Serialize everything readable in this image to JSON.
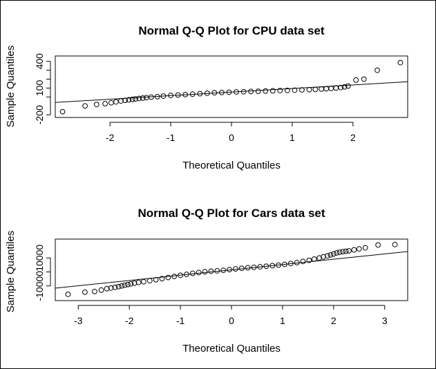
{
  "chart_data": [
    {
      "type": "scatter",
      "title": "Normal Q-Q Plot for CPU data set",
      "xlabel": "Theoretical Quantiles",
      "ylabel": "Sample Quantiles",
      "xlim": [
        -2.9,
        2.9
      ],
      "ylim": [
        -230,
        460
      ],
      "x_ticks": [
        -2,
        -1,
        0,
        1,
        2
      ],
      "y_ticks": [
        -200,
        0,
        100,
        200,
        300,
        400
      ],
      "y_tick_labels": [
        "-200",
        "",
        "100",
        "",
        "",
        "400"
      ],
      "grid": false,
      "reference_line": {
        "intercept": 55,
        "slope": 40
      },
      "points": {
        "x": [
          -2.78,
          -2.41,
          -2.22,
          -2.08,
          -1.98,
          -1.9,
          -1.82,
          -1.75,
          -1.69,
          -1.63,
          -1.58,
          -1.52,
          -1.46,
          -1.4,
          -1.32,
          -1.22,
          -1.12,
          -1.0,
          -0.88,
          -0.76,
          -0.64,
          -0.52,
          -0.4,
          -0.28,
          -0.16,
          -0.04,
          0.08,
          0.2,
          0.32,
          0.44,
          0.56,
          0.68,
          0.8,
          0.92,
          1.04,
          1.16,
          1.28,
          1.38,
          1.48,
          1.56,
          1.64,
          1.72,
          1.8,
          1.86,
          1.92,
          2.05,
          2.18,
          2.4,
          2.78
        ],
        "y": [
          -165,
          -100,
          -85,
          -75,
          -65,
          -55,
          -45,
          -38,
          -32,
          -27,
          -22,
          -17,
          -12,
          -7,
          -2,
          3,
          10,
          17,
          22,
          27,
          32,
          37,
          42,
          47,
          50,
          53,
          57,
          59,
          62,
          64,
          67,
          69,
          72,
          74,
          76,
          79,
          82,
          85,
          89,
          92,
          96,
          101,
          106,
          113,
          123,
          190,
          200,
          300,
          385
        ]
      }
    },
    {
      "type": "scatter",
      "title": "Normal Q-Q Plot for Cars data set",
      "xlabel": "Theoretical Quantiles",
      "ylabel": "Sample Quantiles",
      "xlim": [
        -3.45,
        3.45
      ],
      "ylim": [
        -20500,
        23500
      ],
      "x_ticks": [
        -3,
        -2,
        -1,
        0,
        1,
        2,
        3
      ],
      "y_ticks": [
        -10000,
        0,
        10000
      ],
      "y_tick_labels": [
        "-10000",
        "",
        "10000"
      ],
      "grid": false,
      "reference_line": {
        "intercept": 1500,
        "slope": 3800
      },
      "points": {
        "x": [
          -3.2,
          -2.87,
          -2.68,
          -2.55,
          -2.44,
          -2.36,
          -2.28,
          -2.21,
          -2.15,
          -2.09,
          -2.03,
          -1.97,
          -1.9,
          -1.82,
          -1.72,
          -1.6,
          -1.48,
          -1.36,
          -1.24,
          -1.12,
          -1.0,
          -0.88,
          -0.76,
          -0.64,
          -0.52,
          -0.4,
          -0.28,
          -0.16,
          -0.04,
          0.08,
          0.2,
          0.32,
          0.44,
          0.56,
          0.68,
          0.8,
          0.92,
          1.04,
          1.16,
          1.28,
          1.4,
          1.52,
          1.62,
          1.72,
          1.8,
          1.88,
          1.94,
          2.0,
          2.06,
          2.12,
          2.18,
          2.24,
          2.3,
          2.4,
          2.5,
          2.62,
          2.87,
          3.2
        ],
        "y": [
          -16000,
          -14500,
          -14000,
          -13000,
          -12000,
          -11500,
          -11000,
          -10500,
          -10000,
          -9500,
          -9000,
          -8500,
          -8000,
          -7500,
          -7000,
          -6300,
          -5600,
          -4800,
          -4000,
          -3200,
          -2400,
          -1700,
          -1000,
          -400,
          100,
          500,
          800,
          1200,
          1700,
          2200,
          2600,
          3000,
          3300,
          3700,
          4100,
          4500,
          4900,
          5400,
          6000,
          6700,
          7500,
          8300,
          9200,
          10000,
          10800,
          11500,
          12200,
          12900,
          13600,
          14100,
          14500,
          14800,
          15100,
          15800,
          16500,
          17300,
          19300,
          19600
        ]
      }
    }
  ]
}
